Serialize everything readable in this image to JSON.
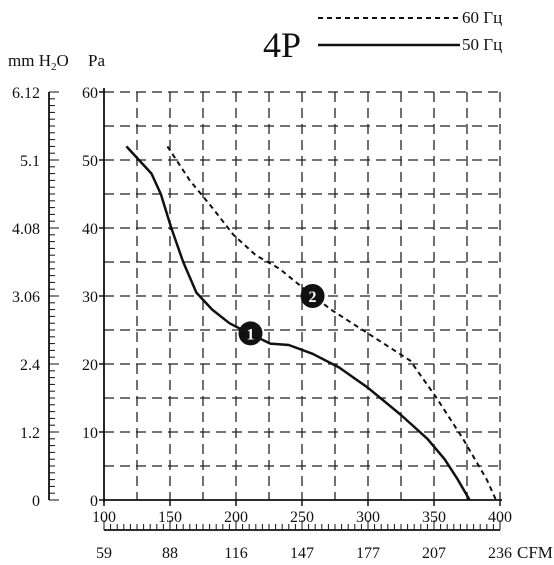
{
  "chart_data": {
    "type": "line",
    "title": "4P",
    "legend": [
      {
        "name": "60 Гц",
        "style": "dashed"
      },
      {
        "name": "50 Гц",
        "style": "solid"
      }
    ],
    "left_units": "mm H2O",
    "y_unit": "Pa",
    "x_unit": "CFM",
    "xlim": [
      100,
      400
    ],
    "ylim": [
      0,
      60
    ],
    "x_ticks": [
      "100",
      "150",
      "200",
      "250",
      "300",
      "350",
      "400"
    ],
    "y_ticks": [
      "0",
      "10",
      "20",
      "30",
      "40",
      "50",
      "60"
    ],
    "cfm_ticks": [
      "59",
      "88",
      "116",
      "147",
      "177",
      "207",
      "236"
    ],
    "mmh2o_ticks": [
      "0",
      "1.2",
      "2.4",
      "3.06",
      "4.08",
      "5.1",
      "6.12"
    ],
    "series": [
      {
        "name": "50 Гц",
        "marker": "1",
        "style": "solid",
        "points": [
          [
            117,
            52
          ],
          [
            136,
            48
          ],
          [
            143,
            45
          ],
          [
            151,
            40
          ],
          [
            160,
            35
          ],
          [
            170,
            30.5
          ],
          [
            182,
            28
          ],
          [
            195,
            26
          ],
          [
            210,
            24.5
          ],
          [
            226,
            23
          ],
          [
            240,
            22.8
          ],
          [
            258,
            21.5
          ],
          [
            278,
            19.5
          ],
          [
            300,
            16.5
          ],
          [
            325,
            12.5
          ],
          [
            345,
            9
          ],
          [
            358,
            6
          ],
          [
            368,
            3
          ],
          [
            377,
            0
          ]
        ],
        "marker_point": [
          211,
          24.5
        ]
      },
      {
        "name": "60 Гц",
        "marker": "2",
        "style": "dashed",
        "points": [
          [
            148,
            52
          ],
          [
            165,
            47
          ],
          [
            182,
            43
          ],
          [
            198,
            39
          ],
          [
            215,
            36
          ],
          [
            233,
            34
          ],
          [
            252,
            31
          ],
          [
            272,
            28
          ],
          [
            292,
            25.5
          ],
          [
            312,
            23
          ],
          [
            332,
            20.5
          ],
          [
            352,
            15
          ],
          [
            372,
            9
          ],
          [
            390,
            3
          ],
          [
            397,
            0
          ]
        ],
        "marker_point": [
          258,
          30
        ]
      }
    ]
  }
}
